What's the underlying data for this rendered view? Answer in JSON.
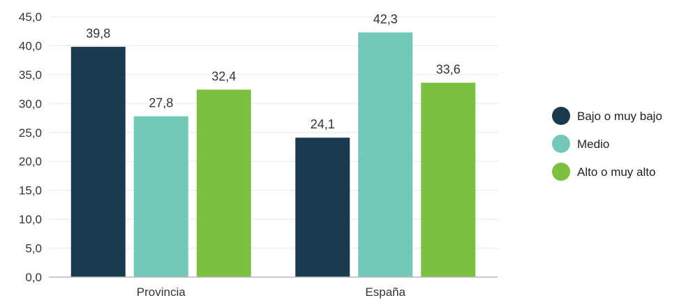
{
  "chart_data": {
    "type": "bar",
    "categories": [
      "Provincia",
      "España"
    ],
    "series": [
      {
        "name": "Bajo o muy bajo",
        "values": [
          39.8,
          24.1
        ],
        "labels": [
          "39,8",
          "24,1"
        ],
        "color": "#1b3a4e"
      },
      {
        "name": "Medio",
        "values": [
          27.8,
          42.3
        ],
        "labels": [
          "27,8",
          "42,3"
        ],
        "color": "#74c8b8"
      },
      {
        "name": "Alto o muy alto",
        "values": [
          32.4,
          33.6
        ],
        "labels": [
          "32,4",
          "33,6"
        ],
        "color": "#7dbf40"
      }
    ],
    "yticks": [
      "0,0",
      "5,0",
      "10,0",
      "15,0",
      "20,0",
      "25,0",
      "30,0",
      "35,0",
      "40,0",
      "45,0"
    ],
    "ylim": [
      0,
      45
    ],
    "grid": true,
    "legend_position": "right",
    "axis_color": "#b8b8b8",
    "grid_color": "#d4d4d4"
  }
}
